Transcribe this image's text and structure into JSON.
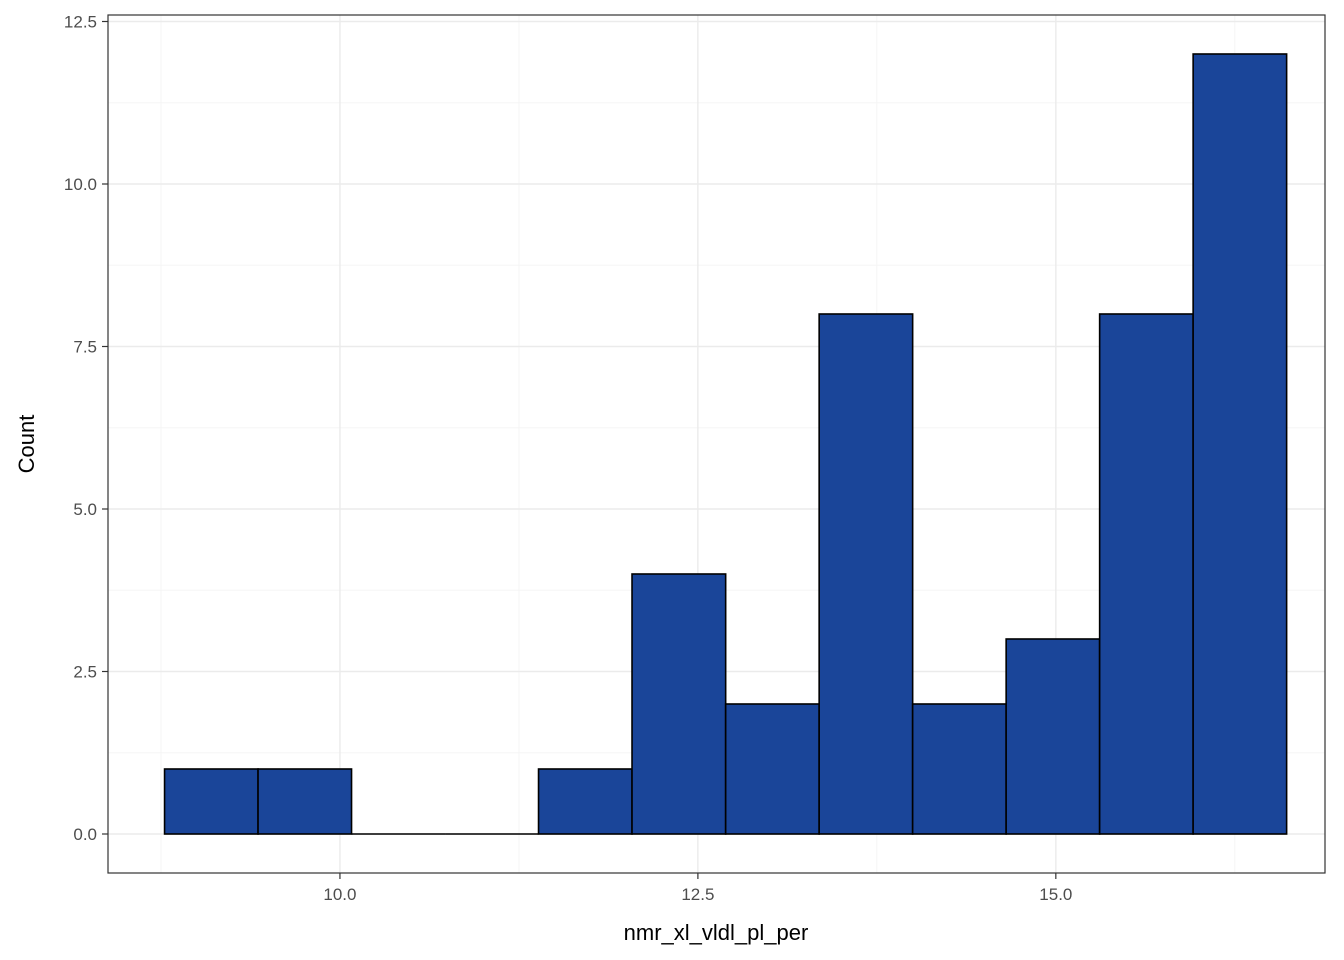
{
  "chart_data": {
    "type": "histogram",
    "title": "",
    "xlabel": "nmr_xl_vldl_pl_per",
    "ylabel": "Count",
    "bins": [
      {
        "x0": 8.775,
        "x1": 9.428,
        "count": 1
      },
      {
        "x0": 9.428,
        "x1": 10.081,
        "count": 1
      },
      {
        "x0": 10.081,
        "x1": 10.734,
        "count": 0
      },
      {
        "x0": 10.734,
        "x1": 11.387,
        "count": 0
      },
      {
        "x0": 11.387,
        "x1": 12.04,
        "count": 1
      },
      {
        "x0": 12.04,
        "x1": 12.694,
        "count": 4
      },
      {
        "x0": 12.694,
        "x1": 13.347,
        "count": 2
      },
      {
        "x0": 13.347,
        "x1": 14.0,
        "count": 8
      },
      {
        "x0": 14.0,
        "x1": 14.653,
        "count": 2
      },
      {
        "x0": 14.653,
        "x1": 15.306,
        "count": 3
      },
      {
        "x0": 15.306,
        "x1": 15.959,
        "count": 8
      },
      {
        "x0": 15.959,
        "x1": 16.612,
        "count": 12
      }
    ],
    "xlim": [
      8.38,
      16.88
    ],
    "ylim": [
      -0.6,
      12.6
    ],
    "xticks": [
      10.0,
      12.5,
      15.0
    ],
    "xtick_labels": [
      "10.0",
      "12.5",
      "15.0"
    ],
    "yticks": [
      0,
      2.5,
      5,
      7.5,
      10,
      12.5
    ],
    "ytick_labels": [
      "0.0",
      "2.5",
      "5.0",
      "7.5",
      "10.0",
      "12.5"
    ],
    "grid": true,
    "legend": "none",
    "colors": {
      "bar_fill": "#1a4599",
      "bar_stroke": "#000000",
      "panel_border": "#333333",
      "grid_major": "#ebebeb",
      "grid_minor": "#f5f5f5",
      "tick_label": "#4d4d4d"
    }
  }
}
